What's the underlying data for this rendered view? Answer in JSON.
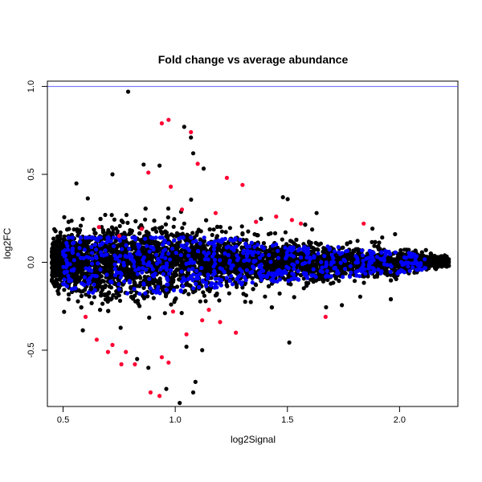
{
  "chart_data": {
    "type": "scatter",
    "title": "Fold change vs average abundance",
    "xlabel": "log2Signal",
    "ylabel": "log2FC",
    "xlim": [
      0.43,
      2.26
    ],
    "ylim": [
      -0.82,
      1.03
    ],
    "xticks": [
      "0.5",
      "1.0",
      "1.5",
      "2.0"
    ],
    "yticks": [
      "-0.5",
      "0.0",
      "0.5",
      "1.0"
    ],
    "grid": false,
    "legend": "none",
    "reference_lines": [
      {
        "y": 1.0,
        "color": "#6060ff"
      }
    ],
    "colors": {
      "background_points": "#000000",
      "blue_points": "#0000ff",
      "red_points": "#ff0033",
      "reference_line": "#6060ff"
    },
    "series": [
      {
        "color": "#000000",
        "points_note": "dense cloud of roughly 5000 genes centered near log2FC 0, spread tightening as log2Signal increases",
        "x": [
          0.45,
          0.5,
          0.6,
          0.7,
          0.8,
          0.9,
          1.0,
          1.1,
          1.2,
          1.3,
          1.4,
          1.5,
          1.6,
          1.7,
          1.8,
          1.9,
          2.0,
          2.1,
          2.2
        ],
        "y_spread": [
          0.12,
          0.16,
          0.2,
          0.22,
          0.22,
          0.21,
          0.2,
          0.18,
          0.16,
          0.15,
          0.13,
          0.12,
          0.11,
          0.1,
          0.09,
          0.08,
          0.07,
          0.05,
          0.03
        ],
        "outliers": [
          [
            0.79,
            0.97
          ],
          [
            1.04,
            0.77
          ],
          [
            1.07,
            0.71
          ],
          [
            1.08,
            0.62
          ],
          [
            0.93,
            0.55
          ],
          [
            0.72,
            0.5
          ],
          [
            0.88,
            -0.6
          ],
          [
            0.96,
            -0.72
          ],
          [
            1.02,
            -0.8
          ],
          [
            1.08,
            -0.74
          ],
          [
            1.09,
            -0.68
          ],
          [
            0.83,
            -0.55
          ],
          [
            1.05,
            -0.48
          ],
          [
            1.12,
            -0.5
          ],
          [
            1.48,
            0.37
          ],
          [
            1.63,
            0.28
          ],
          [
            1.98,
            0.16
          ],
          [
            2.22,
            -0.02
          ]
        ]
      },
      {
        "color": "#0000ff",
        "points_note": "highlighted genes within the main band",
        "x_range": [
          0.5,
          2.12
        ],
        "y_range": [
          -0.2,
          0.14
        ]
      },
      {
        "color": "#ff0033",
        "points": [
          [
            0.97,
            0.81
          ],
          [
            0.94,
            0.79
          ],
          [
            1.07,
            0.74
          ],
          [
            1.1,
            0.56
          ],
          [
            0.88,
            0.51
          ],
          [
            1.23,
            0.48
          ],
          [
            1.3,
            0.44
          ],
          [
            0.98,
            0.43
          ],
          [
            1.45,
            0.26
          ],
          [
            1.52,
            0.24
          ],
          [
            1.56,
            0.22
          ],
          [
            1.84,
            0.22
          ],
          [
            0.6,
            -0.31
          ],
          [
            1.67,
            -0.31
          ],
          [
            0.65,
            -0.44
          ],
          [
            0.72,
            -0.47
          ],
          [
            0.7,
            -0.51
          ],
          [
            0.78,
            -0.51
          ],
          [
            0.76,
            -0.58
          ],
          [
            0.82,
            -0.58
          ],
          [
            0.94,
            -0.54
          ],
          [
            0.97,
            -0.57
          ],
          [
            0.89,
            -0.74
          ],
          [
            0.93,
            -0.76
          ],
          [
            1.05,
            -0.41
          ],
          [
            1.12,
            -0.33
          ],
          [
            1.2,
            -0.34
          ],
          [
            1.27,
            -0.4
          ],
          [
            1.15,
            -0.27
          ],
          [
            0.99,
            -0.28
          ],
          [
            0.66,
            0.2
          ],
          [
            0.75,
            0.15
          ],
          [
            0.85,
            0.19
          ],
          [
            1.03,
            0.3
          ],
          [
            1.18,
            0.28
          ],
          [
            1.36,
            0.23
          ]
        ]
      }
    ]
  }
}
